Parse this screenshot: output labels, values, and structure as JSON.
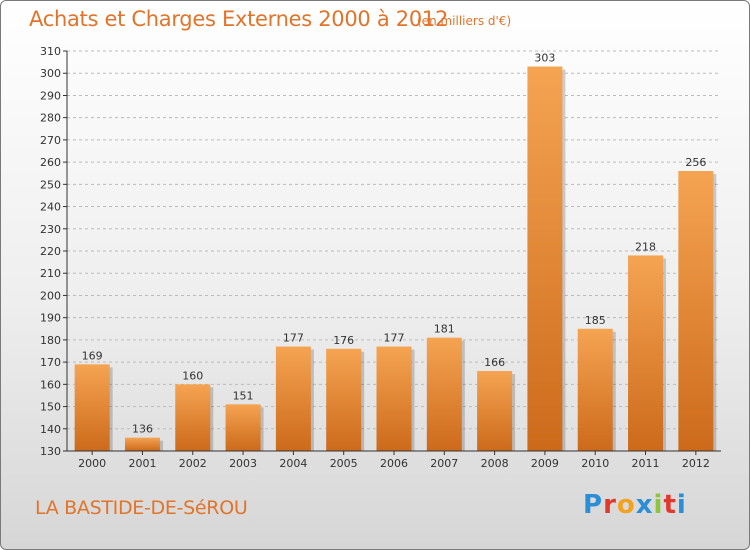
{
  "chart_data": {
    "type": "bar",
    "title": "Achats et Charges Externes 2000 à 2012",
    "subtitle": "(en milliers d'€)",
    "categories": [
      "2000",
      "2001",
      "2002",
      "2003",
      "2004",
      "2005",
      "2006",
      "2007",
      "2008",
      "2009",
      "2010",
      "2011",
      "2012"
    ],
    "values": [
      169,
      136,
      160,
      151,
      177,
      176,
      177,
      181,
      166,
      303,
      185,
      218,
      256
    ],
    "ylim": [
      130,
      310
    ],
    "ytick_step": 10,
    "grid": "horizontal dashed",
    "bar_color_top": "#f5a452",
    "bar_color_bottom": "#cc6a1a"
  },
  "footer": {
    "commune": "LA BASTIDE-DE-SéROU",
    "logo_letters": [
      "P",
      "r",
      "o",
      "x",
      "i",
      "t",
      "i"
    ],
    "logo_colors": [
      "#2a8fd6",
      "#e03a2e",
      "#f2a21f",
      "#2a8fd6",
      "#8cc63f",
      "#e03a2e",
      "#2a8fd6"
    ]
  },
  "colors": {
    "accent": "#e2742a",
    "axis": "#333333",
    "grid": "#bbbbbb"
  }
}
